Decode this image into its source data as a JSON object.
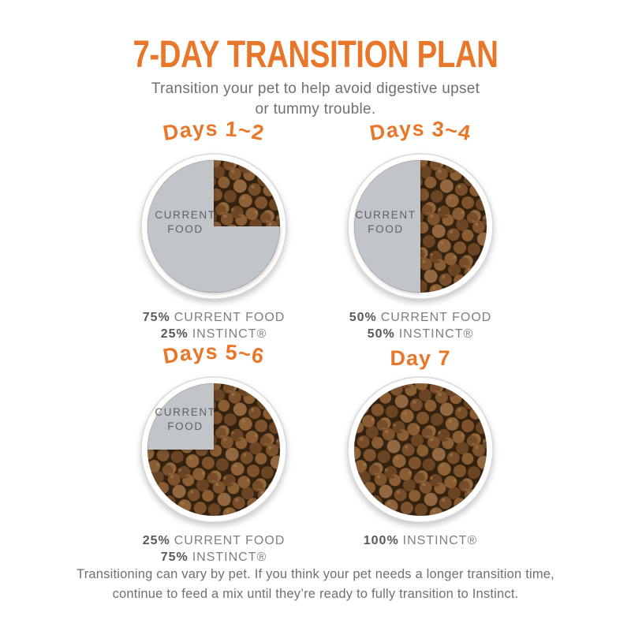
{
  "colors": {
    "accent_orange": "#E8772A",
    "pie_gray": "#C1C4C9",
    "text_gray": "#6E7073",
    "percent_gray": "#58595C",
    "kibble_brown": "#7E522C"
  },
  "header": {
    "title": "7-DAY TRANSITION PLAN",
    "subtitle_line1": "Transition your pet to help avoid digestive upset",
    "subtitle_line2": "or tummy trouble."
  },
  "current_food_label": {
    "line1": "CURRENT",
    "line2": "FOOD"
  },
  "panels": [
    {
      "title": "Days 1~2",
      "current_food_pct": 75,
      "instinct_pct": 25,
      "caption": [
        {
          "pct": "75%",
          "text": "CURRENT FOOD"
        },
        {
          "pct": "25%",
          "text": "INSTINCT®"
        }
      ]
    },
    {
      "title": "Days 3~4",
      "current_food_pct": 50,
      "instinct_pct": 50,
      "caption": [
        {
          "pct": "50%",
          "text": "CURRENT FOOD"
        },
        {
          "pct": "50%",
          "text": "INSTINCT®"
        }
      ]
    },
    {
      "title": "Days 5~6",
      "current_food_pct": 25,
      "instinct_pct": 75,
      "caption": [
        {
          "pct": "25%",
          "text": "CURRENT FOOD"
        },
        {
          "pct": "75%",
          "text": "INSTINCT®"
        }
      ]
    },
    {
      "title": "Day 7",
      "current_food_pct": 0,
      "instinct_pct": 100,
      "caption": [
        {
          "pct": "100%",
          "text": "INSTINCT®"
        }
      ]
    }
  ],
  "footer": {
    "line1": "Transitioning can vary by pet. If you think your pet needs a longer transition time,",
    "line2": "continue to feed a mix until they’re ready to fully transition to Instinct."
  },
  "chart_data": [
    {
      "type": "pie",
      "title": "Days 1~2",
      "slices": [
        {
          "label": "CURRENT FOOD",
          "value": 75
        },
        {
          "label": "INSTINCT",
          "value": 25
        }
      ]
    },
    {
      "type": "pie",
      "title": "Days 3~4",
      "slices": [
        {
          "label": "CURRENT FOOD",
          "value": 50
        },
        {
          "label": "INSTINCT",
          "value": 50
        }
      ]
    },
    {
      "type": "pie",
      "title": "Days 5~6",
      "slices": [
        {
          "label": "CURRENT FOOD",
          "value": 25
        },
        {
          "label": "INSTINCT",
          "value": 75
        }
      ]
    },
    {
      "type": "pie",
      "title": "Day 7",
      "slices": [
        {
          "label": "INSTINCT",
          "value": 100
        }
      ]
    }
  ]
}
